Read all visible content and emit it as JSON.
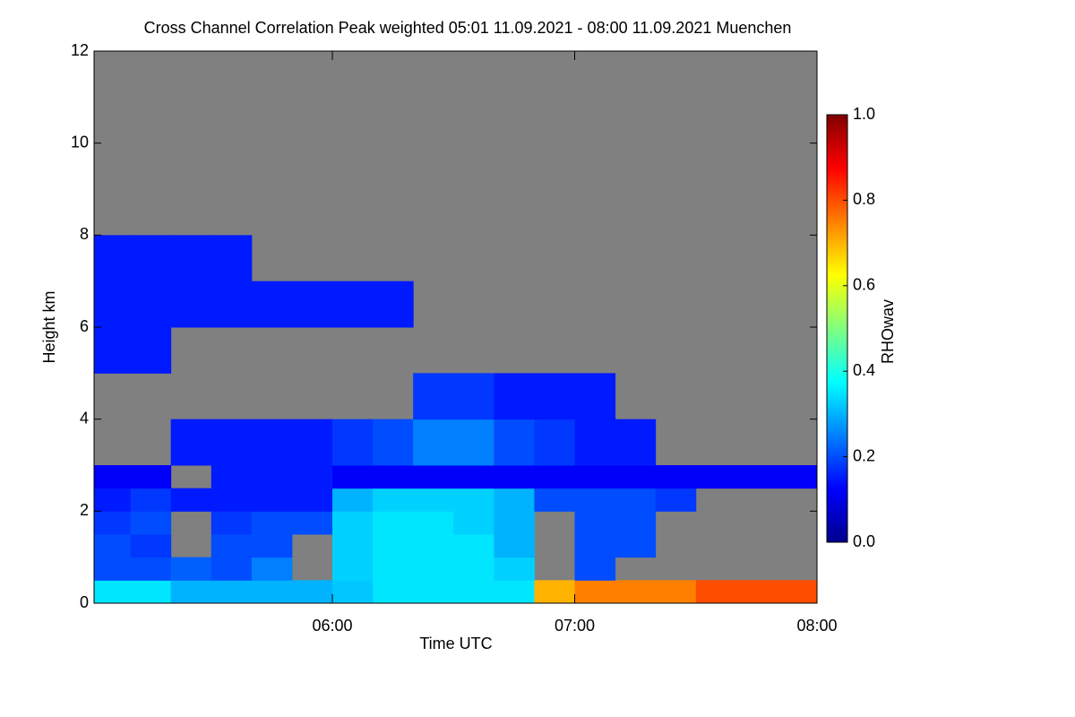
{
  "chart_data": {
    "type": "heatmap",
    "title": "Cross Channel Correlation Peak weighted   05:01 11.09.2021 - 08:00 11.09.2021 Muenchen",
    "xlabel": "Time UTC",
    "ylabel": "Height km",
    "colorbar_label": "RHOwav",
    "xlim": [
      301,
      480
    ],
    "xticks": [
      {
        "value": 360,
        "label": "06:00"
      },
      {
        "value": 420,
        "label": "07:00"
      },
      {
        "value": 480,
        "label": "08:00"
      }
    ],
    "ylim": [
      0,
      12
    ],
    "yticks": [
      0,
      2,
      4,
      6,
      8,
      10,
      12
    ],
    "zlim": [
      0,
      1
    ],
    "zticks": [
      {
        "value": 0,
        "label": "0.0"
      },
      {
        "value": 0.2,
        "label": "0.2"
      },
      {
        "value": 0.4,
        "label": "0.4"
      },
      {
        "value": 0.6,
        "label": "0.6"
      },
      {
        "value": 0.8,
        "label": "0.8"
      },
      {
        "value": 1,
        "label": "1.0"
      }
    ],
    "colorscale": [
      "#00008b",
      "#0000ff",
      "#0080ff",
      "#00ffff",
      "#80ff80",
      "#ffff00",
      "#ff8000",
      "#ff0000",
      "#800000"
    ],
    "missing_color": "#808080",
    "xbins": [
      300,
      310,
      320,
      330,
      340,
      350,
      360,
      370,
      380,
      390,
      400,
      410,
      420,
      430,
      440,
      450,
      460,
      470,
      480
    ],
    "ybins": [
      0,
      0.5,
      1,
      1.5,
      2,
      2.5,
      3,
      4,
      5,
      6,
      7,
      8,
      12
    ],
    "z": [
      [
        0.35,
        0.35,
        0.3,
        0.3,
        0.3,
        0.3,
        0.32,
        0.35,
        0.35,
        0.35,
        0.35,
        0.7,
        0.75,
        0.75,
        0.75,
        0.8,
        0.8,
        0.8
      ],
      [
        0.2,
        0.2,
        0.22,
        0.2,
        0.25,
        null,
        0.33,
        0.35,
        0.35,
        0.35,
        0.33,
        null,
        0.2,
        null,
        null,
        null,
        null,
        null
      ],
      [
        0.2,
        0.18,
        null,
        0.2,
        0.2,
        null,
        0.33,
        0.35,
        0.35,
        0.35,
        0.3,
        null,
        0.2,
        0.2,
        null,
        null,
        null,
        null
      ],
      [
        0.18,
        0.2,
        null,
        0.18,
        0.2,
        0.2,
        0.33,
        0.35,
        0.35,
        0.33,
        0.3,
        null,
        0.2,
        0.2,
        null,
        null,
        null,
        null
      ],
      [
        0.15,
        0.18,
        0.15,
        0.15,
        0.15,
        0.15,
        0.3,
        0.33,
        0.33,
        0.33,
        0.3,
        0.2,
        0.2,
        0.2,
        0.18,
        null,
        null,
        null
      ],
      [
        0.12,
        0.12,
        null,
        0.15,
        0.15,
        0.15,
        0.12,
        0.12,
        0.12,
        0.12,
        0.12,
        0.12,
        0.12,
        0.12,
        0.12,
        0.12,
        0.12,
        0.12
      ],
      [
        null,
        null,
        0.15,
        0.15,
        0.15,
        0.15,
        0.18,
        0.2,
        0.25,
        0.25,
        0.2,
        0.18,
        0.15,
        0.15,
        null,
        null,
        null,
        null
      ],
      [
        null,
        null,
        null,
        null,
        null,
        null,
        null,
        null,
        0.18,
        0.18,
        0.15,
        0.15,
        0.15,
        null,
        null,
        null,
        null,
        null
      ],
      [
        0.15,
        0.15,
        null,
        null,
        null,
        null,
        null,
        null,
        null,
        null,
        null,
        null,
        null,
        null,
        null,
        null,
        null,
        null
      ],
      [
        0.15,
        0.15,
        0.15,
        0.15,
        0.15,
        0.15,
        0.15,
        0.15,
        null,
        null,
        null,
        null,
        null,
        null,
        null,
        null,
        null,
        null
      ],
      [
        0.15,
        0.15,
        0.15,
        0.15,
        null,
        null,
        null,
        null,
        null,
        null,
        null,
        null,
        null,
        null,
        null,
        null,
        null,
        null
      ],
      [
        null,
        null,
        null,
        null,
        null,
        null,
        null,
        null,
        null,
        null,
        null,
        null,
        null,
        null,
        null,
        null,
        null,
        null
      ]
    ]
  }
}
